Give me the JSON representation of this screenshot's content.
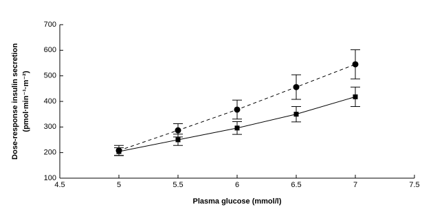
{
  "chart_data": {
    "type": "line",
    "xlabel": "Plasma glucose (mmol/l)",
    "ylabel": [
      "Dose-response insulin secretion",
      "(pmol·min⁻¹·m⁻²)"
    ],
    "x": [
      5,
      5.5,
      6,
      6.5,
      7
    ],
    "series": [
      {
        "marker": "circle",
        "dash": true,
        "color": "#000000",
        "values": [
          208,
          287,
          368,
          456,
          545
        ],
        "errors": [
          20,
          26,
          37,
          48,
          57
        ]
      },
      {
        "marker": "square",
        "dash": false,
        "color": "#000000",
        "values": [
          204,
          250,
          296,
          350,
          418
        ],
        "errors": [
          15,
          22,
          25,
          30,
          38
        ]
      }
    ],
    "xlim": [
      4.5,
      7.5
    ],
    "xticks": [
      4.5,
      5,
      5.5,
      6,
      6.5,
      7,
      7.5
    ],
    "ylim": [
      100,
      700
    ],
    "yticks": [
      100,
      200,
      300,
      400,
      500,
      600,
      700
    ]
  }
}
